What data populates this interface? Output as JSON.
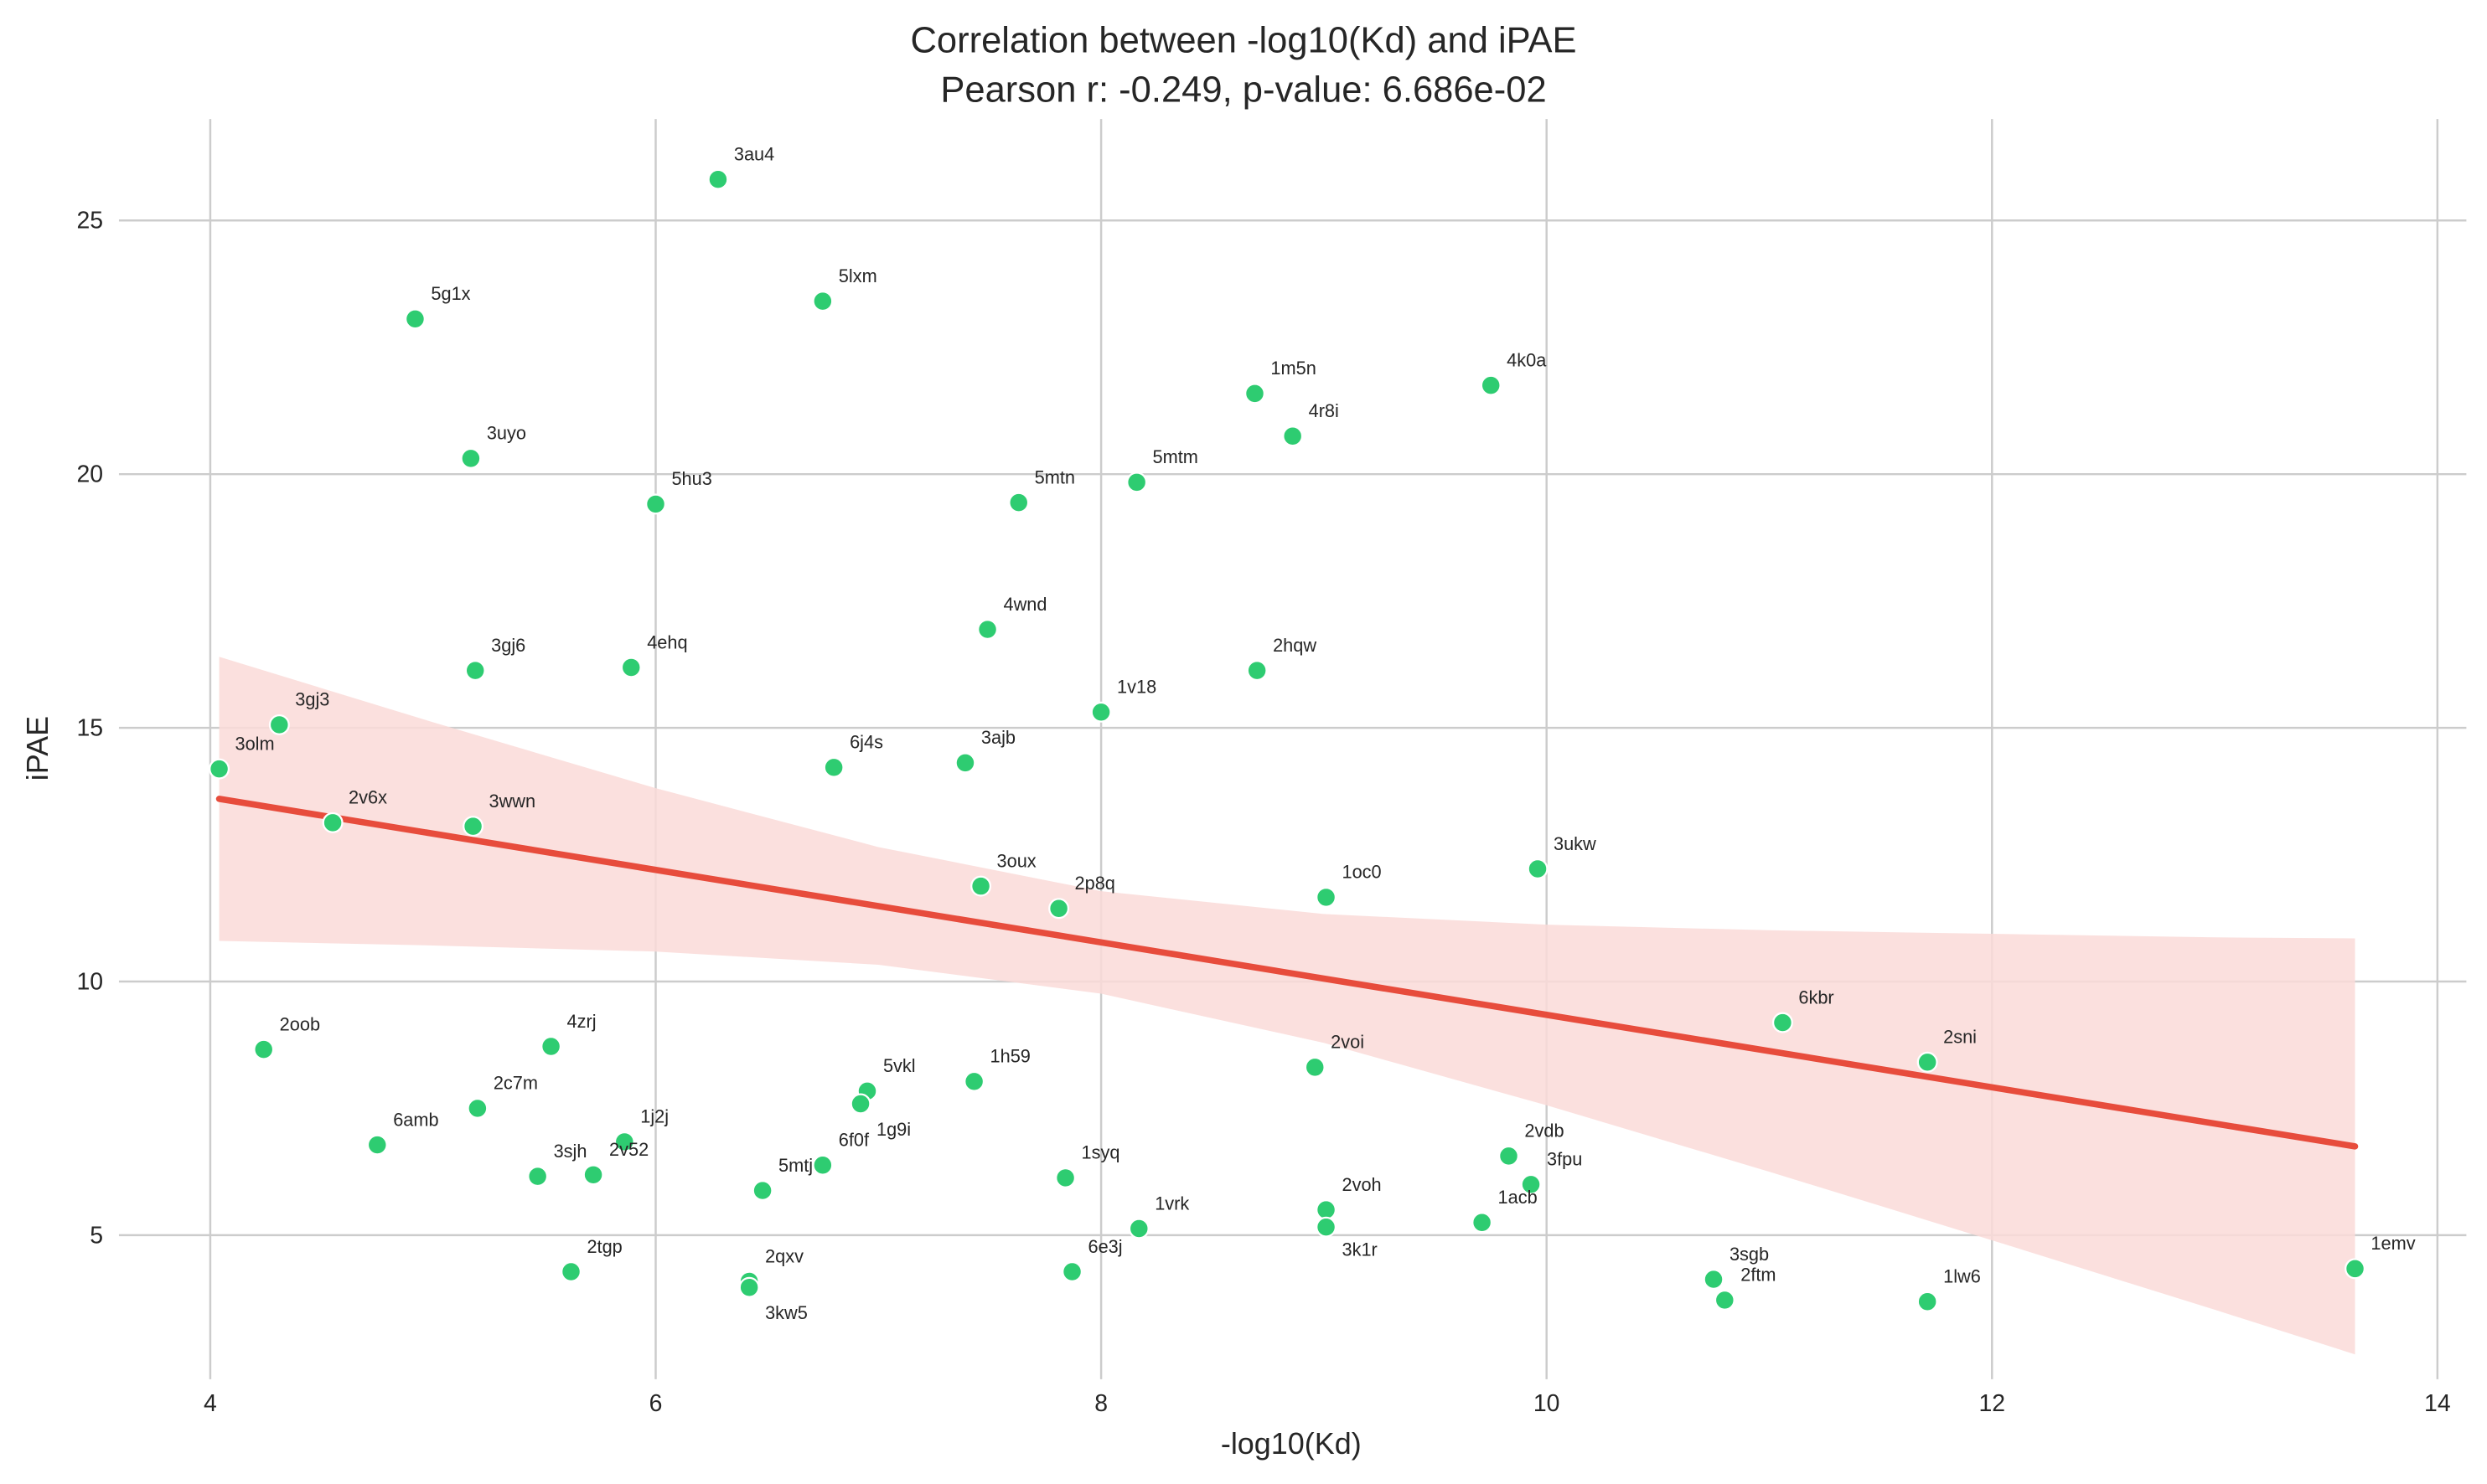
{
  "chart_data": {
    "type": "scatter",
    "title": "Correlation between -log10(Kd) and iPAE",
    "subtitle": "Pearson r: -0.249, p-value: 6.686e-02",
    "xlabel": "-log10(Kd)",
    "ylabel": "iPAE",
    "xlim": [
      3.59,
      14.13
    ],
    "ylim": [
      2.16,
      27.0
    ],
    "xticks": [
      4,
      6,
      8,
      10,
      12,
      14
    ],
    "yticks": [
      5,
      10,
      15,
      20,
      25
    ],
    "grid": true,
    "colors": {
      "points": "#2ecc71",
      "regression": "#e74c3c",
      "ci_band": "#fadbd8",
      "grid": "#cccccc"
    },
    "points": [
      {
        "label": "3au4",
        "x": 6.28,
        "y": 25.81
      },
      {
        "label": "5lxm",
        "x": 6.75,
        "y": 23.41
      },
      {
        "label": "5g1x",
        "x": 4.92,
        "y": 23.06
      },
      {
        "label": "1m5n",
        "x": 8.69,
        "y": 21.59
      },
      {
        "label": "4k0a",
        "x": 9.75,
        "y": 21.75
      },
      {
        "label": "4r8i",
        "x": 8.86,
        "y": 20.75
      },
      {
        "label": "3uyo",
        "x": 5.17,
        "y": 20.31
      },
      {
        "label": "5mtm",
        "x": 8.16,
        "y": 19.84
      },
      {
        "label": "5hu3",
        "x": 6.0,
        "y": 19.41
      },
      {
        "label": "5mtn",
        "x": 7.63,
        "y": 19.44
      },
      {
        "label": "4wnd",
        "x": 7.49,
        "y": 16.94
      },
      {
        "label": "3gj6",
        "x": 5.19,
        "y": 16.13
      },
      {
        "label": "4ehq",
        "x": 5.89,
        "y": 16.19
      },
      {
        "label": "2hqw",
        "x": 8.7,
        "y": 16.13
      },
      {
        "label": "1v18",
        "x": 8.0,
        "y": 15.31
      },
      {
        "label": "3gj3",
        "x": 4.31,
        "y": 15.06
      },
      {
        "label": "3olm",
        "x": 4.04,
        "y": 14.19
      },
      {
        "label": "6j4s",
        "x": 6.8,
        "y": 14.22
      },
      {
        "label": "3ajb",
        "x": 7.39,
        "y": 14.31
      },
      {
        "label": "2v6x",
        "x": 4.55,
        "y": 13.13
      },
      {
        "label": "3wwn",
        "x": 5.18,
        "y": 13.06
      },
      {
        "label": "3ukw",
        "x": 9.96,
        "y": 12.22
      },
      {
        "label": "1oc0",
        "x": 9.01,
        "y": 11.66
      },
      {
        "label": "3oux",
        "x": 7.46,
        "y": 11.88
      },
      {
        "label": "2p8q",
        "x": 7.81,
        "y": 11.44
      },
      {
        "label": "6kbr",
        "x": 11.06,
        "y": 9.19
      },
      {
        "label": "2sni",
        "x": 11.71,
        "y": 8.41
      },
      {
        "label": "2oob",
        "x": 4.24,
        "y": 8.66
      },
      {
        "label": "4zrj",
        "x": 5.53,
        "y": 8.72
      },
      {
        "label": "2voi",
        "x": 8.96,
        "y": 8.31
      },
      {
        "label": "1h59",
        "x": 7.43,
        "y": 8.03
      },
      {
        "label": "5vkl",
        "x": 6.95,
        "y": 7.84
      },
      {
        "label": "1g9i",
        "x": 6.92,
        "y": 7.59
      },
      {
        "label": "2c7m",
        "x": 5.2,
        "y": 7.5
      },
      {
        "label": "1j2j",
        "x": 5.86,
        "y": 6.84
      },
      {
        "label": "6amb",
        "x": 4.75,
        "y": 6.78
      },
      {
        "label": "6f0f",
        "x": 6.75,
        "y": 6.38
      },
      {
        "label": "3sjh",
        "x": 5.47,
        "y": 6.16
      },
      {
        "label": "2v52",
        "x": 5.72,
        "y": 6.19
      },
      {
        "label": "1syq",
        "x": 7.84,
        "y": 6.13
      },
      {
        "label": "5mtj",
        "x": 6.48,
        "y": 5.88
      },
      {
        "label": "2vdb",
        "x": 9.83,
        "y": 6.56
      },
      {
        "label": "3fpu",
        "x": 9.93,
        "y": 6.0
      },
      {
        "label": "2voh",
        "x": 9.01,
        "y": 5.5
      },
      {
        "label": "3k1r",
        "x": 9.01,
        "y": 5.16
      },
      {
        "label": "1acb",
        "x": 9.71,
        "y": 5.25
      },
      {
        "label": "1vrk",
        "x": 8.17,
        "y": 5.13
      },
      {
        "label": "2tgp",
        "x": 5.62,
        "y": 4.28
      },
      {
        "label": "2qxv",
        "x": 6.42,
        "y": 4.09
      },
      {
        "label": "3kw5",
        "x": 6.42,
        "y": 3.97
      },
      {
        "label": "6e3j",
        "x": 7.87,
        "y": 4.28
      },
      {
        "label": "3sgb",
        "x": 10.75,
        "y": 4.13
      },
      {
        "label": "2ftm",
        "x": 10.8,
        "y": 3.72
      },
      {
        "label": "1lw6",
        "x": 11.71,
        "y": 3.69
      },
      {
        "label": "1emv",
        "x": 13.63,
        "y": 4.34
      }
    ],
    "regression": {
      "x": [
        4.04,
        13.63
      ],
      "y": [
        13.6,
        6.75
      ]
    },
    "ci_band": {
      "x": [
        4.04,
        5,
        6,
        7,
        8,
        9,
        10,
        11,
        12,
        13,
        13.63
      ],
      "upper": [
        16.4,
        15.11,
        13.81,
        12.65,
        11.78,
        11.33,
        11.12,
        11.01,
        10.94,
        10.87,
        10.85
      ],
      "lower": [
        10.8,
        10.71,
        10.59,
        10.33,
        9.76,
        8.79,
        7.56,
        6.25,
        4.9,
        3.53,
        2.65
      ]
    }
  }
}
